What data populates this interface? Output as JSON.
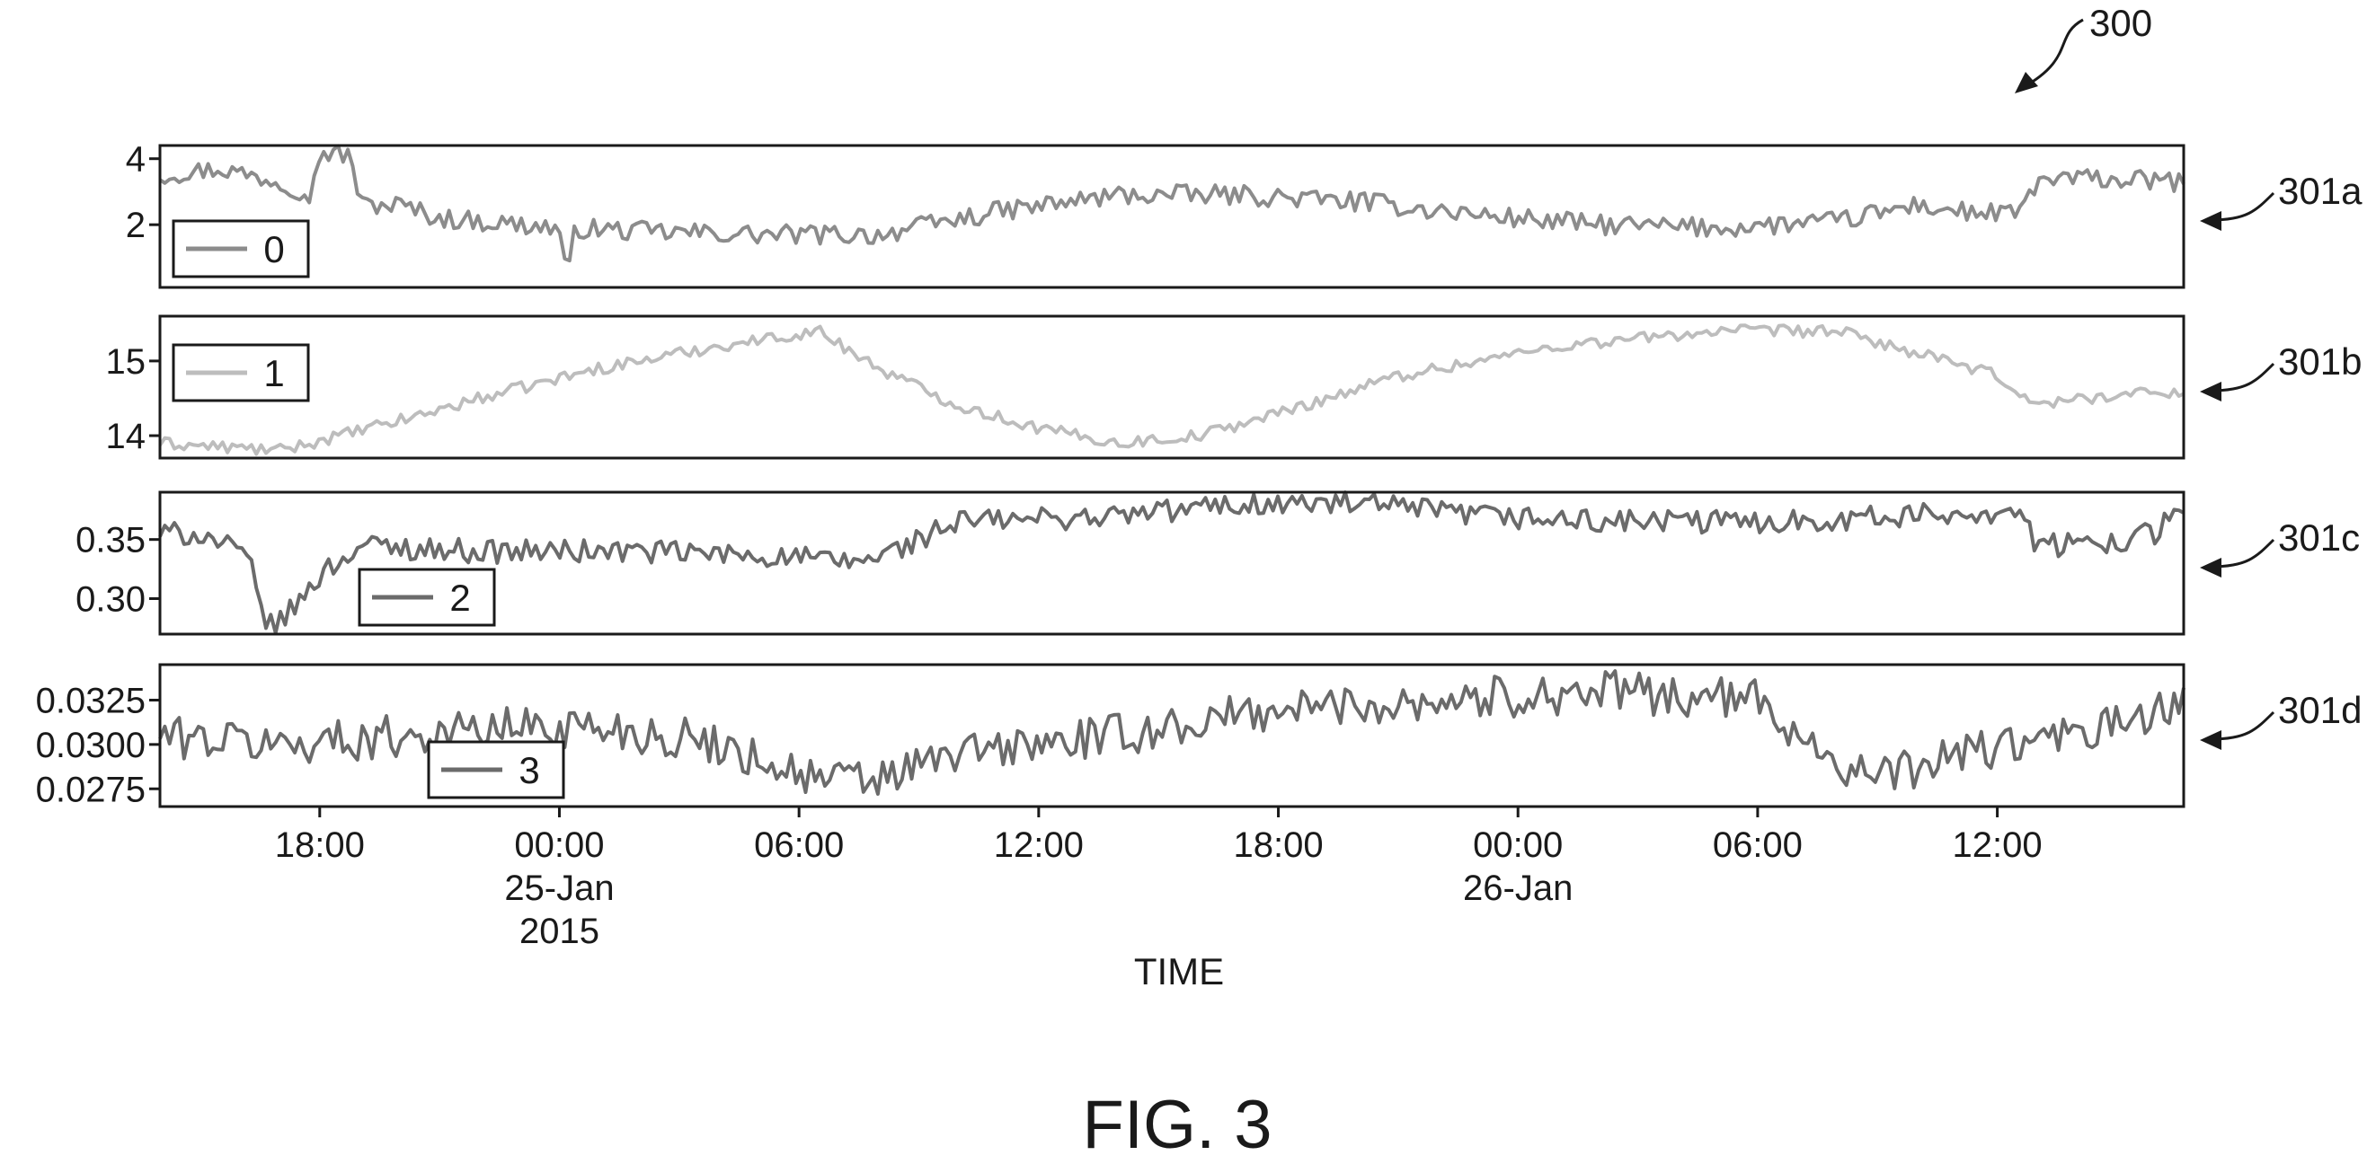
{
  "figure": {
    "reference_number": "300",
    "caption": "FIG. 3"
  },
  "colors": {
    "frame": "#1a1a1a",
    "series_dark": "#6b6b6b",
    "series_mid": "#8c8c8c",
    "series_light": "#bdbdbd"
  },
  "chart_data": {
    "type": "line",
    "xlabel": "TIME",
    "x_range": [
      "2015-01-24 14:00",
      "2015-01-26 16:40"
    ],
    "x_ticks": [
      {
        "time": "2015-01-24 18:00",
        "label": "18:00"
      },
      {
        "time": "2015-01-25 00:00",
        "label": "00:00",
        "sub1": "25-Jan",
        "sub2": "2015"
      },
      {
        "time": "2015-01-25 06:00",
        "label": "06:00"
      },
      {
        "time": "2015-01-25 12:00",
        "label": "12:00"
      },
      {
        "time": "2015-01-25 18:00",
        "label": "18:00"
      },
      {
        "time": "2015-01-26 00:00",
        "label": "00:00",
        "sub1": "26-Jan"
      },
      {
        "time": "2015-01-26 06:00",
        "label": "06:00"
      },
      {
        "time": "2015-01-26 12:00",
        "label": "12:00"
      }
    ],
    "panels": [
      {
        "ref": "301a",
        "legend": "0",
        "legend_pos": "bottom-left",
        "color": "#8c8c8c",
        "ylim": [
          0.1,
          4.4
        ],
        "yticks": [
          {
            "value": 4,
            "label": "4"
          },
          {
            "value": 2,
            "label": "2"
          }
        ],
        "noise": 0.3,
        "anchors": [
          [
            0,
            3.5
          ],
          [
            1.5,
            3.7
          ],
          [
            3,
            3.3
          ],
          [
            3.8,
            2.9
          ],
          [
            4,
            4.2
          ],
          [
            4.8,
            4.1
          ],
          [
            5,
            2.6
          ],
          [
            6,
            2.6
          ],
          [
            7,
            2.2
          ],
          [
            9,
            2.0
          ],
          [
            10,
            1.9
          ],
          [
            10.2,
            0.2
          ],
          [
            10.4,
            1.9
          ],
          [
            12,
            1.8
          ],
          [
            15,
            1.7
          ],
          [
            18,
            1.7
          ],
          [
            21,
            2.4
          ],
          [
            24,
            2.9
          ],
          [
            27,
            2.9
          ],
          [
            30,
            2.7
          ],
          [
            33,
            2.3
          ],
          [
            36,
            2.0
          ],
          [
            39,
            1.9
          ],
          [
            42,
            2.1
          ],
          [
            44,
            2.6
          ],
          [
            45,
            2.4
          ],
          [
            46.5,
            2.3
          ],
          [
            47,
            3.3
          ],
          [
            48,
            3.4
          ],
          [
            50.5,
            3.3
          ]
        ]
      },
      {
        "ref": "301b",
        "legend": "1",
        "legend_pos": "top-left",
        "color": "#bdbdbd",
        "ylim": [
          13.7,
          15.6
        ],
        "yticks": [
          {
            "value": 15,
            "label": "15"
          },
          {
            "value": 14,
            "label": "14"
          }
        ],
        "noise": 0.08,
        "anchors": [
          [
            0,
            13.9
          ],
          [
            3,
            13.8
          ],
          [
            6,
            14.2
          ],
          [
            8,
            14.5
          ],
          [
            11,
            14.9
          ],
          [
            14,
            15.2
          ],
          [
            16.5,
            15.4
          ],
          [
            18,
            14.9
          ],
          [
            20,
            14.4
          ],
          [
            22,
            14.1
          ],
          [
            24,
            13.9
          ],
          [
            26,
            14.0
          ],
          [
            28,
            14.3
          ],
          [
            31,
            14.8
          ],
          [
            35,
            15.2
          ],
          [
            39,
            15.4
          ],
          [
            42,
            15.4
          ],
          [
            44,
            15.1
          ],
          [
            46,
            14.8
          ],
          [
            47,
            14.4
          ],
          [
            48,
            14.5
          ],
          [
            50.5,
            14.6
          ]
        ]
      },
      {
        "ref": "301c",
        "legend": "2",
        "legend_pos": "bottom-center",
        "color": "#6b6b6b",
        "ylim": [
          0.27,
          0.39
        ],
        "yticks": [
          {
            "value": 0.35,
            "label": "0.35"
          },
          {
            "value": 0.3,
            "label": "0.30"
          }
        ],
        "noise": 0.01,
        "anchors": [
          [
            0,
            0.355
          ],
          [
            1,
            0.355
          ],
          [
            2.2,
            0.335
          ],
          [
            2.5,
            0.295
          ],
          [
            2.8,
            0.275
          ],
          [
            3.3,
            0.29
          ],
          [
            4,
            0.32
          ],
          [
            5,
            0.345
          ],
          [
            8,
            0.34
          ],
          [
            12,
            0.34
          ],
          [
            16,
            0.335
          ],
          [
            17,
            0.33
          ],
          [
            18,
            0.335
          ],
          [
            20,
            0.365
          ],
          [
            24,
            0.37
          ],
          [
            27,
            0.38
          ],
          [
            30,
            0.38
          ],
          [
            33,
            0.37
          ],
          [
            36,
            0.365
          ],
          [
            40,
            0.365
          ],
          [
            44,
            0.37
          ],
          [
            46.5,
            0.375
          ],
          [
            47,
            0.345
          ],
          [
            48,
            0.345
          ],
          [
            50,
            0.355
          ],
          [
            50.4,
            0.38
          ]
        ]
      },
      {
        "ref": "301d",
        "legend": "3",
        "legend_pos": "bottom-center",
        "color": "#6b6b6b",
        "ylim": [
          0.0265,
          0.0345
        ],
        "yticks": [
          {
            "value": 0.0325,
            "label": "0.0325"
          },
          {
            "value": 0.03,
            "label": "0.0300"
          },
          {
            "value": 0.0275,
            "label": "0.0275"
          }
        ],
        "noise": 0.0012,
        "anchors": [
          [
            0,
            0.0305
          ],
          [
            3,
            0.03
          ],
          [
            6,
            0.0305
          ],
          [
            9,
            0.031
          ],
          [
            11,
            0.031
          ],
          [
            14,
            0.03
          ],
          [
            16.5,
            0.028
          ],
          [
            18,
            0.028
          ],
          [
            20,
            0.0295
          ],
          [
            24,
            0.0305
          ],
          [
            28,
            0.032
          ],
          [
            32,
            0.0325
          ],
          [
            36,
            0.033
          ],
          [
            40,
            0.0325
          ],
          [
            42,
            0.029
          ],
          [
            43,
            0.028
          ],
          [
            45,
            0.0295
          ],
          [
            48,
            0.0305
          ],
          [
            50.5,
            0.032
          ]
        ]
      }
    ]
  }
}
